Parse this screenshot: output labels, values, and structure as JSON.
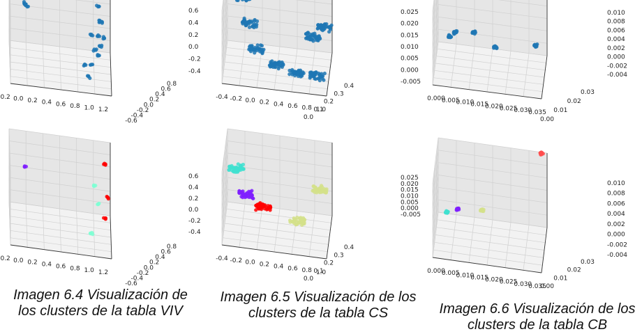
{
  "captions": [
    {
      "line1": "Imagen 6.4 Visualización de",
      "line2": "los clusters de la tabla VIV"
    },
    {
      "line1": "Imagen 6.5 Visualización de los",
      "line2": "clusters de la tabla CS"
    },
    {
      "line1": "Imagen 6.6 Visualización de los",
      "line2": "clusters de la tabla CB"
    }
  ],
  "chart_data": [
    {
      "type": "scatter",
      "table": "VIV",
      "clustered": false,
      "x_ticks": [
        "-0.2",
        "0.0",
        "0.2",
        "0.4",
        "0.6",
        "0.8",
        "1.0",
        "1.2"
      ],
      "y_ticks": [
        "-0.6",
        "-0.4",
        "-0.2",
        "0.0",
        "0.2",
        "0.4",
        "0.6",
        "0.8"
      ],
      "z_ticks": [
        "0.6",
        "0.4",
        "0.2",
        "0.0",
        "-0.2",
        "-0.4"
      ],
      "xlim": [
        -0.25,
        1.3
      ],
      "ylim": [
        -0.65,
        0.85
      ],
      "zlim": [
        -0.55,
        0.65
      ],
      "series": [
        {
          "color": "#1f77b4",
          "points": [
            [
              0.0,
              0.8,
              0.1
            ],
            [
              0.0,
              0.78,
              0.12
            ],
            [
              0.02,
              0.8,
              0.08
            ]
          ]
        },
        {
          "color": "#1f77b4",
          "points": [
            [
              1.1,
              0.0,
              0.6
            ],
            [
              1.12,
              -0.1,
              0.4
            ],
            [
              1.1,
              -0.2,
              0.2
            ],
            [
              1.05,
              -0.3,
              0.0
            ],
            [
              1.0,
              -0.4,
              -0.2
            ],
            [
              0.95,
              -0.5,
              -0.35
            ],
            [
              1.15,
              0.1,
              0.3
            ],
            [
              1.2,
              0.2,
              0.0
            ],
            [
              1.15,
              0.3,
              -0.2
            ],
            [
              0.9,
              -0.2,
              -0.3
            ],
            [
              1.0,
              0.0,
              0.1
            ],
            [
              1.1,
              0.15,
              -0.3
            ]
          ]
        }
      ]
    },
    {
      "type": "scatter",
      "table": "CS",
      "clustered": false,
      "x_ticks": [
        "-0.4",
        "-0.2",
        "0.0",
        "0.2",
        "0.4",
        "0.6",
        "0.8",
        "1.0"
      ],
      "y_ticks": [
        "0.0",
        "0.1",
        "0.2",
        "0.3",
        "0.4"
      ],
      "z_ticks": [
        "0.025",
        "0.020",
        "0.015",
        "0.010",
        "0.005",
        "0.000",
        "-0.005"
      ],
      "xlim": [
        -0.45,
        1.05
      ],
      "ylim": [
        -0.05,
        0.45
      ],
      "zlim": [
        -0.008,
        0.027
      ],
      "series": [
        {
          "color": "#1f77b4",
          "points": [
            [
              -0.2,
              0.3,
              0.02
            ],
            [
              -0.1,
              0.25,
              0.01
            ],
            [
              0.0,
              0.2,
              0.0
            ],
            [
              0.3,
              0.15,
              -0.004
            ],
            [
              0.6,
              0.1,
              -0.005
            ],
            [
              0.9,
              0.05,
              -0.003
            ],
            [
              0.8,
              0.3,
              0.005
            ],
            [
              0.95,
              0.35,
              0.008
            ]
          ]
        }
      ]
    },
    {
      "type": "scatter",
      "table": "CB",
      "clustered": false,
      "x_ticks": [
        "0.000",
        "0.005",
        "0.010",
        "0.015",
        "0.020",
        "0.025",
        "0.030",
        "0.035"
      ],
      "y_ticks": [
        "0.00",
        "0.01",
        "0.02",
        "0.03"
      ],
      "z_ticks": [
        "0.010",
        "0.008",
        "0.006",
        "0.004",
        "0.002",
        "0.000",
        "-0.002",
        "-0.004"
      ],
      "xlim": [
        -0.002,
        0.038
      ],
      "ylim": [
        -0.005,
        0.035
      ],
      "zlim": [
        -0.005,
        0.011
      ],
      "series": [
        {
          "color": "#1f77b4",
          "points": [
            [
              0.003,
              0.02,
              0.0
            ],
            [
              0.005,
              0.02,
              0.001
            ],
            [
              0.012,
              0.018,
              0.002
            ],
            [
              0.02,
              0.015,
              0.0
            ],
            [
              0.034,
              0.03,
              -0.002
            ],
            [
              0.036,
              0.034,
              0.011
            ]
          ]
        }
      ]
    },
    {
      "type": "scatter",
      "table": "VIV",
      "clustered": true,
      "x_ticks": [
        "-0.2",
        "0.0",
        "0.2",
        "0.4",
        "0.6",
        "0.8",
        "1.0",
        "1.2"
      ],
      "y_ticks": [
        "-0.6",
        "-0.4",
        "-0.2",
        "0.0",
        "0.2",
        "0.4",
        "0.6",
        "0.8"
      ],
      "z_ticks": [
        "0.6",
        "0.4",
        "0.2",
        "0.0",
        "-0.2",
        "-0.4"
      ],
      "xlim": [
        -0.25,
        1.3
      ],
      "ylim": [
        -0.65,
        0.85
      ],
      "zlim": [
        -0.55,
        0.65
      ],
      "series": [
        {
          "color": "#7f1fff",
          "points": [
            [
              0.0,
              0.8,
              0.1
            ]
          ]
        },
        {
          "color": "#7fffd4",
          "points": [
            [
              1.0,
              -0.4,
              -0.3
            ],
            [
              1.1,
              -0.2,
              0.1
            ],
            [
              1.05,
              0.0,
              0.3
            ]
          ]
        },
        {
          "color": "#ff0000",
          "points": [
            [
              1.2,
              0.4,
              0.5
            ],
            [
              1.25,
              0.3,
              0.0
            ],
            [
              1.2,
              0.2,
              -0.3
            ]
          ]
        }
      ]
    },
    {
      "type": "scatter",
      "table": "CS",
      "clustered": true,
      "x_ticks": [
        "-0.4",
        "-0.2",
        "0.0",
        "0.2",
        "0.4",
        "0.6",
        "0.8",
        "1.0"
      ],
      "y_ticks": [
        "0.0",
        "0.1",
        "0.2",
        "0.3",
        "0.4"
      ],
      "z_ticks": [
        "0.025",
        "0.020",
        "0.015",
        "0.010",
        "0.005",
        "0.000",
        "-0.005"
      ],
      "xlim": [
        -0.45,
        1.05
      ],
      "ylim": [
        -0.05,
        0.45
      ],
      "zlim": [
        -0.008,
        0.027
      ],
      "series": [
        {
          "color": "#40e0d0",
          "points": [
            [
              -0.3,
              0.3,
              0.015
            ]
          ]
        },
        {
          "color": "#7f1fff",
          "points": [
            [
              -0.15,
              0.25,
              0.005
            ]
          ]
        },
        {
          "color": "#ff0000",
          "points": [
            [
              0.1,
              0.2,
              0.002
            ]
          ]
        },
        {
          "color": "#d4e08a",
          "points": [
            [
              0.6,
              0.15,
              0.0
            ],
            [
              0.9,
              0.3,
              0.01
            ]
          ]
        }
      ]
    },
    {
      "type": "scatter",
      "table": "CB",
      "clustered": true,
      "x_ticks": [
        "0.000",
        "0.005",
        "0.010",
        "0.015",
        "0.020",
        "0.025",
        "0.030",
        "0.035"
      ],
      "y_ticks": [
        "0.00",
        "0.01",
        "0.02",
        "0.03"
      ],
      "z_ticks": [
        "0.010",
        "0.008",
        "0.006",
        "0.004",
        "0.002",
        "0.000",
        "-0.002",
        "-0.004"
      ],
      "xlim": [
        -0.002,
        0.038
      ],
      "ylim": [
        -0.005,
        0.035
      ],
      "zlim": [
        -0.005,
        0.011
      ],
      "series": [
        {
          "color": "#40e0d0",
          "points": [
            [
              0.002,
              0.02,
              -0.001
            ]
          ]
        },
        {
          "color": "#7f1fff",
          "points": [
            [
              0.006,
              0.02,
              0.0
            ]
          ]
        },
        {
          "color": "#d4e08a",
          "points": [
            [
              0.015,
              0.018,
              0.001
            ]
          ]
        },
        {
          "color": "#ff4d4d",
          "points": [
            [
              0.036,
              0.034,
              0.011
            ]
          ]
        }
      ]
    }
  ]
}
